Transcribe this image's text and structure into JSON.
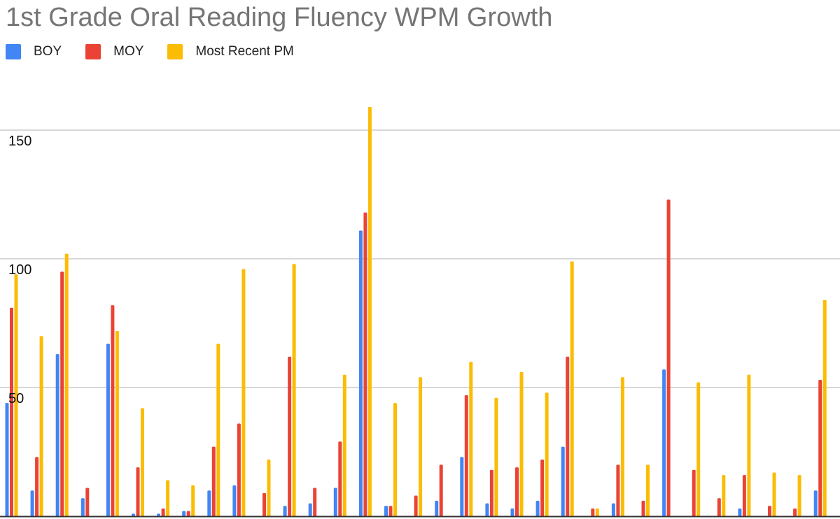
{
  "chart_data": {
    "type": "bar",
    "title": "1st Grade Oral Reading Fluency WPM Growth",
    "xlabel": "",
    "ylabel": "",
    "ylim": [
      0,
      162
    ],
    "yticks": [
      50,
      100,
      150
    ],
    "grid": true,
    "legend_position": "top-left",
    "categories": [
      "",
      "",
      "",
      "",
      "",
      "",
      "",
      "",
      "",
      "",
      "",
      "",
      "",
      "",
      "",
      "",
      "",
      "",
      "",
      "",
      "",
      "",
      "",
      "",
      "",
      "",
      "",
      "",
      "",
      "",
      "",
      "",
      ""
    ],
    "series": [
      {
        "name": "BOY",
        "color": "#4285f4",
        "values": [
          44,
          10,
          63,
          7,
          67,
          1,
          1,
          2,
          10,
          12,
          0,
          4,
          5,
          11,
          111,
          4,
          0,
          6,
          23,
          5,
          3,
          6,
          27,
          0,
          5,
          0,
          57,
          0,
          0,
          3,
          0,
          0,
          10
        ]
      },
      {
        "name": "MOY",
        "color": "#ea4335",
        "values": [
          81,
          23,
          95,
          11,
          82,
          19,
          3,
          2,
          27,
          36,
          9,
          62,
          11,
          29,
          118,
          4,
          8,
          20,
          47,
          18,
          19,
          22,
          62,
          3,
          20,
          6,
          123,
          18,
          7,
          16,
          4,
          3,
          53
        ]
      },
      {
        "name": "Most Recent PM",
        "color": "#fbbc04",
        "values": [
          94,
          70,
          102,
          0,
          72,
          42,
          14,
          12,
          67,
          96,
          22,
          98,
          0,
          55,
          159,
          44,
          54,
          0,
          60,
          46,
          56,
          48,
          99,
          3,
          54,
          20,
          0,
          52,
          16,
          55,
          17,
          16,
          84
        ]
      }
    ]
  }
}
